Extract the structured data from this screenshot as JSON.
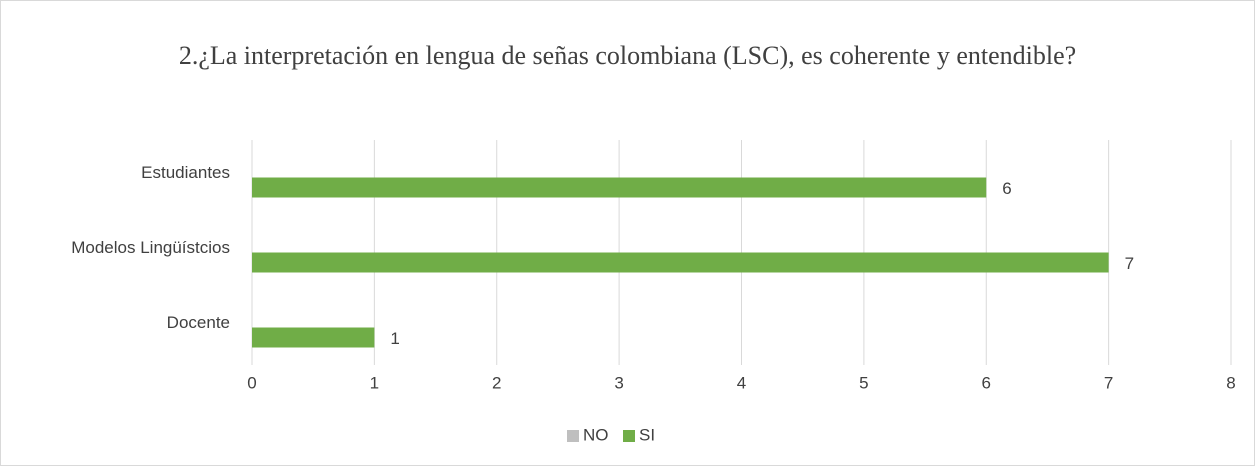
{
  "chart_data": {
    "type": "bar",
    "orientation": "horizontal",
    "title": "2.¿La interpretación en lengua de señas colombiana (LSC), es coherente y entendible?",
    "categories": [
      "Estudiantes",
      "Modelos Lingüístcios",
      "Docente"
    ],
    "series": [
      {
        "name": "NO",
        "color": "#bfbfbf",
        "values": [
          0,
          0,
          0
        ]
      },
      {
        "name": "SI",
        "color": "#70ad47",
        "values": [
          6,
          7,
          1
        ]
      }
    ],
    "xlim": [
      0,
      8
    ],
    "xticks": [
      0,
      1,
      2,
      3,
      4,
      5,
      6,
      7,
      8
    ],
    "grid": true,
    "legend": "bottom"
  }
}
